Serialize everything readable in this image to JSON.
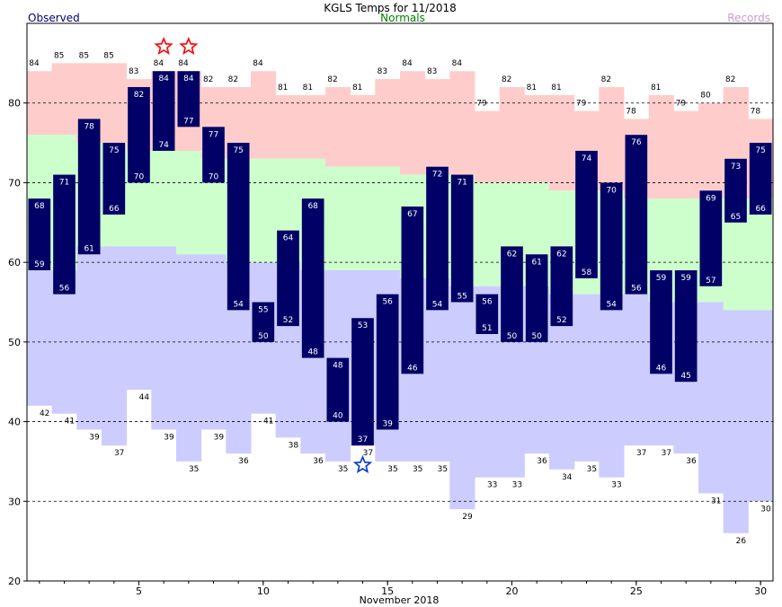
{
  "chart_data": {
    "type": "bar",
    "title": "KGLS Temps for 11/2018",
    "legend": {
      "observed": "Observed",
      "normals": "Normals",
      "records": "Records"
    },
    "xlabel": "November 2018",
    "ylabel": "",
    "xlim": [
      0.5,
      30.5
    ],
    "ylim": [
      20,
      90
    ],
    "x_ticks": [
      5,
      10,
      15,
      20,
      25,
      30
    ],
    "y_ticks": [
      20,
      30,
      40,
      50,
      60,
      70,
      80
    ],
    "grid": "dashed horizontal at 30, 40, 50, 60, 70, 80",
    "colors": {
      "observed_bar": "#000066",
      "record_high_band": "#ffcccc",
      "normal_band": "#ccffcc",
      "record_low_band": "#ccccff",
      "legend_observed": "#000080",
      "legend_normals": "#008000",
      "legend_records": "#cc99cc",
      "record_high_star": "#ff0000",
      "record_low_star": "#0033cc"
    },
    "days": [
      1,
      2,
      3,
      4,
      5,
      6,
      7,
      8,
      9,
      10,
      11,
      12,
      13,
      14,
      15,
      16,
      17,
      18,
      19,
      20,
      21,
      22,
      23,
      24,
      25,
      26,
      27,
      28,
      29,
      30
    ],
    "series": [
      {
        "name": "Observed High",
        "values": [
          68,
          71,
          78,
          75,
          82,
          84,
          84,
          77,
          75,
          55,
          64,
          68,
          48,
          53,
          56,
          67,
          72,
          71,
          56,
          62,
          61,
          62,
          74,
          70,
          76,
          59,
          59,
          69,
          73,
          75
        ]
      },
      {
        "name": "Observed Low",
        "values": [
          59,
          56,
          61,
          66,
          70,
          74,
          77,
          70,
          54,
          50,
          52,
          48,
          40,
          37,
          39,
          46,
          54,
          55,
          51,
          50,
          50,
          52,
          58,
          54,
          56,
          46,
          45,
          57,
          65,
          66
        ]
      },
      {
        "name": "Record High",
        "values": [
          84,
          85,
          85,
          85,
          83,
          84,
          84,
          82,
          82,
          84,
          81,
          81,
          82,
          81,
          83,
          84,
          83,
          84,
          79,
          82,
          81,
          81,
          79,
          82,
          78,
          81,
          79,
          80,
          82,
          78
        ]
      },
      {
        "name": "Normal High",
        "values": [
          76,
          76,
          75,
          75,
          74,
          74,
          74,
          73,
          73,
          73,
          73,
          73,
          72,
          72,
          72,
          71,
          71,
          71,
          70,
          70,
          70,
          69,
          69,
          69,
          68,
          68,
          68,
          68,
          68,
          68
        ]
      },
      {
        "name": "Normal Low",
        "values": [
          59,
          59,
          62,
          62,
          62,
          62,
          61,
          61,
          60,
          60,
          60,
          59,
          59,
          59,
          59,
          58,
          58,
          57,
          57,
          57,
          57,
          56,
          56,
          56,
          56,
          55,
          55,
          55,
          54,
          54
        ]
      },
      {
        "name": "Record Low",
        "values": [
          42,
          41,
          39,
          37,
          44,
          39,
          35,
          39,
          36,
          41,
          38,
          36,
          35,
          37,
          35,
          35,
          35,
          29,
          33,
          33,
          36,
          34,
          35,
          33,
          37,
          37,
          36,
          31,
          26,
          30
        ]
      }
    ],
    "record_high_days": [
      6,
      7
    ],
    "record_low_days": [
      14
    ]
  }
}
